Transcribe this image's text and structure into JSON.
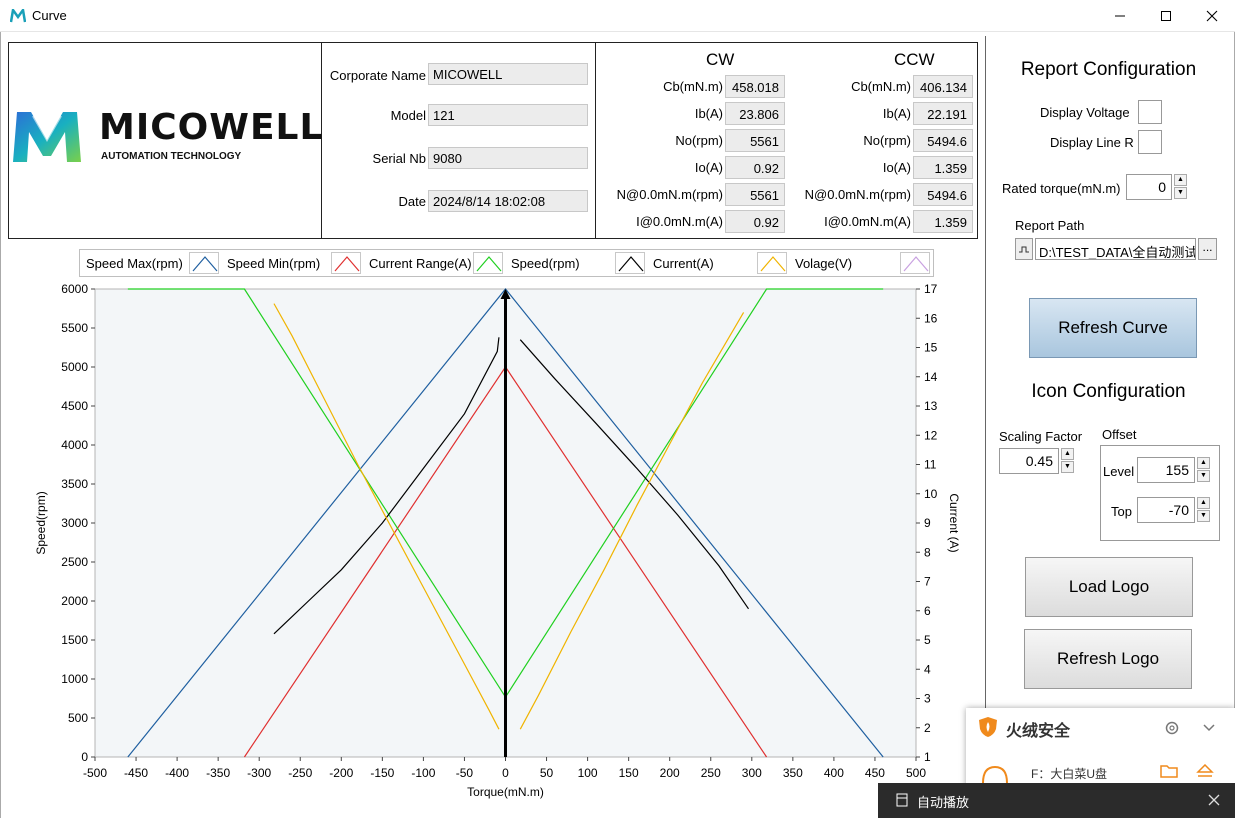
{
  "window": {
    "title": "Curve"
  },
  "logo": {
    "brand": "MICOWELL",
    "tagline": "AUTOMATION TECHNOLOGY"
  },
  "info": {
    "corporate_label": "Corporate Name",
    "corporate_value": "MICOWELL",
    "model_label": "Model",
    "model_value": "121",
    "serial_label": "Serial Nb",
    "serial_value": "9080",
    "date_label": "Date",
    "date_value": "2024/8/14 18:02:08"
  },
  "stats": {
    "cw_head": "CW",
    "ccw_head": "CCW",
    "rows": [
      {
        "label": "Cb(mN.m)",
        "cw": "458.018",
        "ccw": "406.134"
      },
      {
        "label": "Ib(A)",
        "cw": "23.806",
        "ccw": "22.191"
      },
      {
        "label": "No(rpm)",
        "cw": "5561",
        "ccw": "5494.6"
      },
      {
        "label": "Io(A)",
        "cw": "0.92",
        "ccw": "1.359"
      },
      {
        "label": "N@0.0mN.m(rpm)",
        "cw": "5561",
        "ccw": "5494.6"
      },
      {
        "label": "I@0.0mN.m(A)",
        "cw": "0.92",
        "ccw": "1.359"
      }
    ]
  },
  "legend": [
    {
      "name": "Speed Max(rpm)",
      "color": "#1f5fa0"
    },
    {
      "name": "Speed Min(rpm)",
      "color": "#e03030"
    },
    {
      "name": "Current Range(A)",
      "color": "#20d020"
    },
    {
      "name": "Speed(rpm)",
      "color": "#000000"
    },
    {
      "name": "Current(A)",
      "color": "#f0b400"
    },
    {
      "name": "Volage(V)",
      "color": "#c8a0e0"
    }
  ],
  "chart_data": {
    "type": "line",
    "xlabel": "Torque(mN.m)",
    "ylabel": "Speed(rpm)",
    "y2label": "Current (A)",
    "xlim": [
      -500,
      500
    ],
    "ylim": [
      0,
      6000
    ],
    "y2lim": [
      1,
      17
    ],
    "x_ticks": [
      -500,
      -450,
      -400,
      -350,
      -300,
      -250,
      -200,
      -150,
      -100,
      -50,
      0,
      50,
      100,
      150,
      200,
      250,
      300,
      350,
      400,
      450,
      500
    ],
    "y_ticks": [
      0,
      500,
      1000,
      1500,
      2000,
      2500,
      3000,
      3500,
      4000,
      4500,
      5000,
      5500,
      6000
    ],
    "y2_ticks": [
      1,
      2,
      3,
      4,
      5,
      6,
      7,
      8,
      9,
      10,
      11,
      12,
      13,
      14,
      15,
      16,
      17
    ],
    "grid": false,
    "series": [
      {
        "axis": "y",
        "color": "#1f5fa0",
        "points": [
          [
            -460,
            0
          ],
          [
            0,
            6000
          ],
          [
            460,
            0
          ]
        ]
      },
      {
        "axis": "y",
        "color": "#e03030",
        "points": [
          [
            -318,
            0
          ],
          [
            0,
            5000
          ],
          [
            318,
            0
          ]
        ]
      },
      {
        "axis": "y2",
        "color": "#20d020",
        "points": [
          [
            -460,
            17
          ],
          [
            -318,
            17
          ],
          [
            0,
            3.05
          ],
          [
            318,
            17
          ],
          [
            460,
            17
          ]
        ]
      },
      {
        "axis": "y",
        "color": "#000000",
        "points": [
          [
            -282,
            1580
          ],
          [
            -270,
            1700
          ],
          [
            -240,
            2000
          ],
          [
            -200,
            2400
          ],
          [
            -150,
            3000
          ],
          [
            -100,
            3700
          ],
          [
            -50,
            4400
          ],
          [
            -10,
            5200
          ],
          [
            -8,
            5380
          ]
        ]
      },
      {
        "axis": "y",
        "color": "#000000",
        "points": [
          [
            18,
            5350
          ],
          [
            60,
            4850
          ],
          [
            110,
            4280
          ],
          [
            160,
            3700
          ],
          [
            210,
            3100
          ],
          [
            260,
            2450
          ],
          [
            296,
            1900
          ]
        ]
      },
      {
        "axis": "y2",
        "color": "#f0b400",
        "points": [
          [
            -282,
            16.5
          ],
          [
            -260,
            15.4
          ],
          [
            -220,
            13.2
          ],
          [
            -180,
            11.0
          ],
          [
            -140,
            8.9
          ],
          [
            -100,
            6.8
          ],
          [
            -60,
            4.7
          ],
          [
            -20,
            2.6
          ],
          [
            -8,
            1.95
          ]
        ]
      },
      {
        "axis": "y2",
        "color": "#f0b400",
        "points": [
          [
            18,
            1.95
          ],
          [
            40,
            3.1
          ],
          [
            80,
            5.3
          ],
          [
            120,
            7.4
          ],
          [
            160,
            9.6
          ],
          [
            200,
            11.7
          ],
          [
            240,
            13.8
          ],
          [
            290,
            16.2
          ]
        ]
      }
    ]
  },
  "report": {
    "title": "Report Configuration",
    "display_voltage": "Display Voltage",
    "display_line_r": "Display Line R",
    "rated_torque_label": "Rated torque(mN.m)",
    "rated_torque_value": "0",
    "report_path_label": "Report Path",
    "report_path_value": "D:\\TEST_DATA\\全自动测试\\",
    "browse": "...",
    "refresh_curve": "Refresh Curve"
  },
  "icon_config": {
    "title": "Icon Configuration",
    "scaling_label": "Scaling Factor",
    "scaling_value": "0.45",
    "offset_label": "Offset",
    "level_label": "Level",
    "level_value": "155",
    "top_label": "Top",
    "top_value": "-70",
    "load_logo": "Load Logo",
    "refresh_logo": "Refresh Logo"
  },
  "popup": {
    "title": "火绒安全",
    "drive": "F：大白菜U盘"
  },
  "autoplay": {
    "title": "自动播放"
  }
}
